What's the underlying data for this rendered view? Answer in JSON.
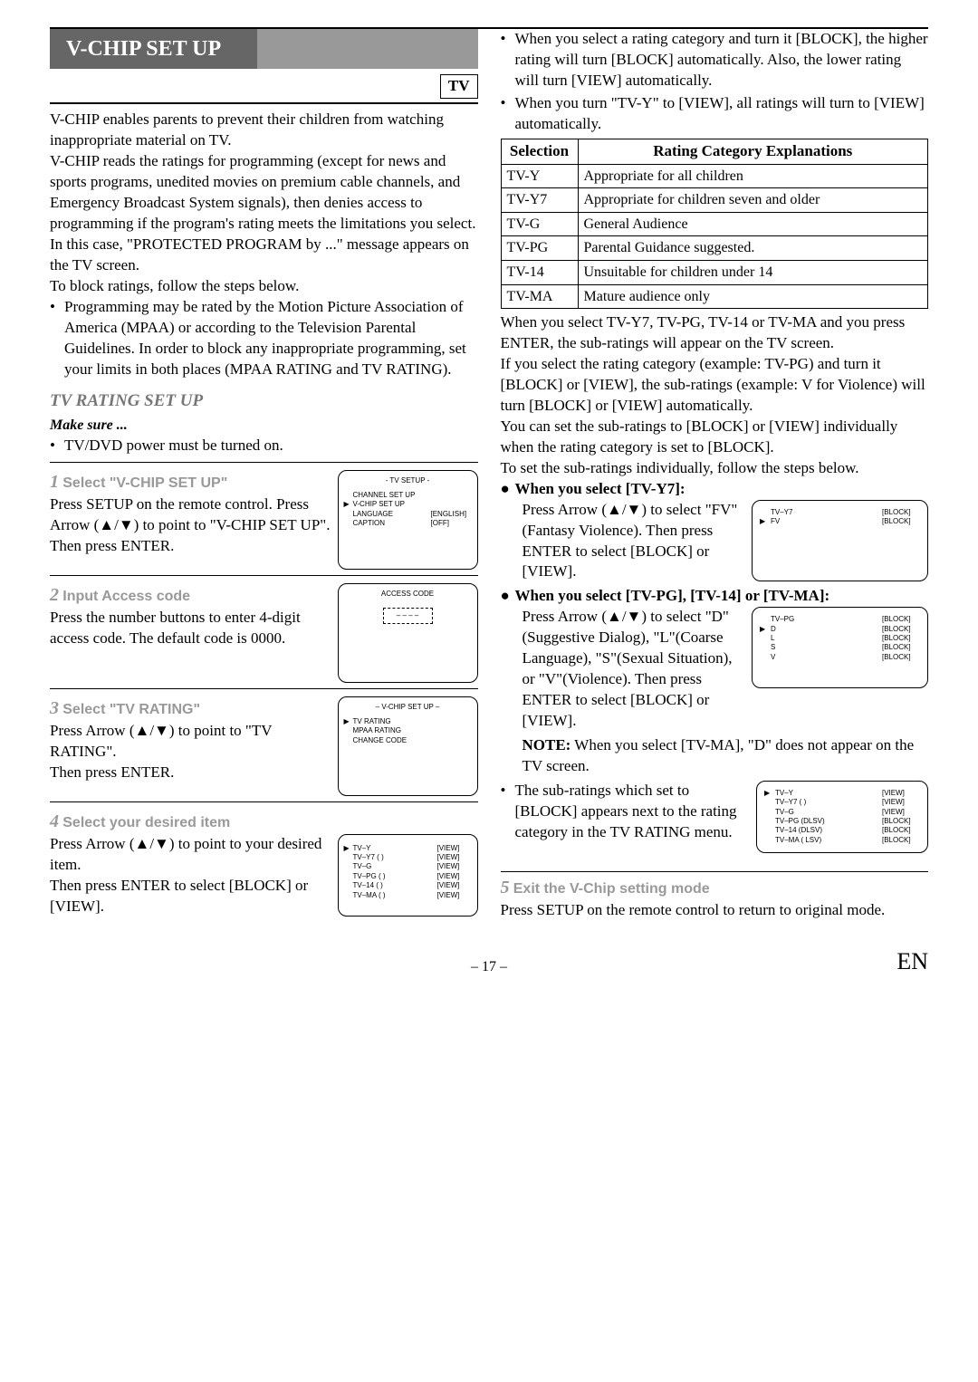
{
  "header": "V-CHIP SET UP",
  "tv_label": "TV",
  "intro": [
    "V-CHIP enables parents to prevent their children from watching inappropriate material on TV.",
    "V-CHIP reads the ratings for programming (except for news and sports programs, unedited movies on premium cable channels, and Emergency Broadcast System signals), then denies access to programming if the program's rating meets the limitations you select. In this case, \"PROTECTED PROGRAM by ...\" message appears on the TV screen.",
    "To block ratings, follow the steps below."
  ],
  "intro_bullet": "Programming may be rated by the Motion Picture Association of America (MPAA) or according to the Television Parental Guidelines. In order to block any inappropriate programming, set your limits in both places (MPAA RATING and TV RATING).",
  "sub_head": "TV RATING SET UP",
  "make_sure_label": "Make sure ...",
  "make_sure_bullet": "TV/DVD power must be turned on.",
  "steps": [
    {
      "num": "1",
      "title": "Select \"V-CHIP SET UP\"",
      "body": "Press SETUP on the remote control. Press Arrow (▲/▼) to point to \"V-CHIP SET UP\".\nThen press ENTER.",
      "screen_title": "- TV SETUP -",
      "screen_lines": [
        {
          "ptr": "",
          "lbl": "CHANNEL SET UP",
          "val": ""
        },
        {
          "ptr": "▶",
          "lbl": "V-CHIP SET UP",
          "val": ""
        },
        {
          "ptr": "",
          "lbl": "LANGUAGE",
          "val": "[ENGLISH]"
        },
        {
          "ptr": "",
          "lbl": "CAPTION",
          "val": "[OFF]"
        }
      ]
    },
    {
      "num": "2",
      "title": "Input Access code",
      "body": "Press the number buttons to enter 4-digit access code. The default code is 0000.",
      "screen_title": "ACCESS CODE",
      "access": " – – – –"
    },
    {
      "num": "3",
      "title": "Select \"TV RATING\"",
      "body": "Press Arrow (▲/▼) to point to \"TV RATING\".\nThen press ENTER.",
      "screen_title": "– V-CHIP SET UP –",
      "screen_lines": [
        {
          "ptr": "▶",
          "lbl": "TV RATING",
          "val": ""
        },
        {
          "ptr": "",
          "lbl": "MPAA RATING",
          "val": ""
        },
        {
          "ptr": "",
          "lbl": "CHANGE CODE",
          "val": ""
        }
      ]
    },
    {
      "num": "4",
      "title": "Select your desired item",
      "body": "Press Arrow (▲/▼) to point to your desired item.\nThen press ENTER to select [BLOCK] or [VIEW].",
      "screen_lines": [
        {
          "ptr": "▶",
          "lbl": "TV–Y",
          "val": "[VIEW]"
        },
        {
          "ptr": "",
          "lbl": "TV–Y7 (          )",
          "val": "[VIEW]"
        },
        {
          "ptr": "",
          "lbl": "TV–G",
          "val": "[VIEW]"
        },
        {
          "ptr": "",
          "lbl": "TV–PG (          )",
          "val": "[VIEW]"
        },
        {
          "ptr": "",
          "lbl": "TV–14 (          )",
          "val": "[VIEW]"
        },
        {
          "ptr": "",
          "lbl": "TV–MA (          )",
          "val": "[VIEW]"
        }
      ]
    }
  ],
  "right_bullets": [
    "When you select a rating category and turn it [BLOCK], the higher rating will turn [BLOCK] automatically. Also, the lower rating will turn [VIEW] automatically.",
    "When you turn \"TV-Y\" to [VIEW], all ratings will turn to [VIEW] automatically."
  ],
  "table": {
    "headers": [
      "Selection",
      "Rating Category Explanations"
    ],
    "rows": [
      [
        "TV-Y",
        "Appropriate for all children"
      ],
      [
        "TV-Y7",
        "Appropriate for children seven and older"
      ],
      [
        "TV-G",
        "General Audience"
      ],
      [
        "TV-PG",
        "Parental Guidance suggested."
      ],
      [
        "TV-14",
        "Unsuitable for children under 14"
      ],
      [
        "TV-MA",
        "Mature audience only"
      ]
    ]
  },
  "right_paras": [
    "When you select TV-Y7, TV-PG, TV-14 or TV-MA and you press ENTER, the sub-ratings will appear on the TV screen.",
    "If you select the rating category (example: TV-PG) and turn it [BLOCK] or [VIEW], the sub-ratings (example: V for Violence) will turn [BLOCK] or [VIEW] automatically.",
    "You can set the sub-ratings to [BLOCK] or [VIEW] individually when the rating category is set to [BLOCK].",
    "To set the sub-ratings individually, follow the steps below."
  ],
  "sub_sel": [
    {
      "head": "When you select [TV-Y7]:",
      "body": "Press Arrow (▲/▼) to select \"FV\" (Fantasy Violence). Then press ENTER to select [BLOCK] or [VIEW].",
      "screen": [
        {
          "ptr": "",
          "lbl": "TV–Y7",
          "val": "[BLOCK]"
        },
        {
          "ptr": "▶",
          "lbl": "FV",
          "val": "[BLOCK]"
        }
      ]
    },
    {
      "head": "When you select [TV-PG], [TV-14] or [TV-MA]:",
      "body": "Press Arrow (▲/▼) to select \"D\"(Suggestive Dialog), \"L\"(Coarse Language), \"S\"(Sexual Situation), or \"V\"(Violence). Then press ENTER to select [BLOCK] or [VIEW].",
      "screen": [
        {
          "ptr": "",
          "lbl": "TV–PG",
          "val": "[BLOCK]"
        },
        {
          "ptr": "▶",
          "lbl": "D",
          "val": "[BLOCK]"
        },
        {
          "ptr": "",
          "lbl": "L",
          "val": "[BLOCK]"
        },
        {
          "ptr": "",
          "lbl": "S",
          "val": "[BLOCK]"
        },
        {
          "ptr": "",
          "lbl": "V",
          "val": "[BLOCK]"
        }
      ],
      "note_label": "NOTE:",
      "note": " When you select [TV-MA], \"D\" does not appear on the TV screen."
    }
  ],
  "sub_ratings_block": {
    "txt": "The sub-ratings which set to [BLOCK] appears next to the rating category in the TV RATING menu.",
    "screen": [
      {
        "ptr": "▶",
        "lbl": "TV–Y",
        "val": "[VIEW]"
      },
      {
        "ptr": "",
        "lbl": "TV–Y7 (          )",
        "val": "[VIEW]"
      },
      {
        "ptr": "",
        "lbl": "TV–G",
        "val": "[VIEW]"
      },
      {
        "ptr": "",
        "lbl": "TV–PG (DLSV)",
        "val": "[BLOCK]"
      },
      {
        "ptr": "",
        "lbl": "TV–14  (DLSV)",
        "val": "[BLOCK]"
      },
      {
        "ptr": "",
        "lbl": "TV–MA (  LSV)",
        "val": "[BLOCK]"
      }
    ]
  },
  "step5": {
    "num": "5",
    "title": "Exit the V-Chip setting mode",
    "body": "Press SETUP on the remote control to return to original mode."
  },
  "footer": {
    "page": "– 17 –",
    "en": "EN"
  }
}
